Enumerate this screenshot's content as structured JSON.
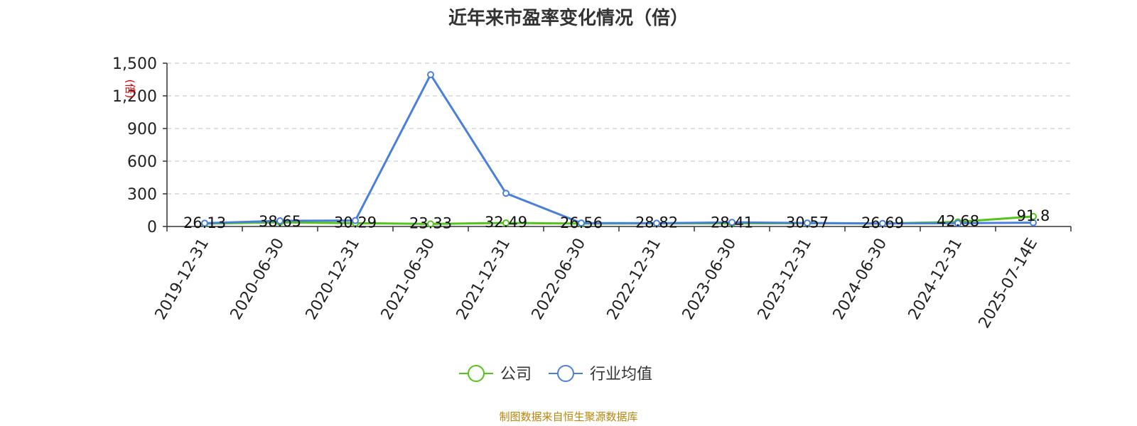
{
  "chart_data": {
    "type": "line",
    "title": "近年来市盈率变化情况（倍）",
    "y_unit": "(倍)",
    "categories": [
      "2019-12-31",
      "2020-06-30",
      "2020-12-31",
      "2021-06-30",
      "2021-12-31",
      "2022-06-30",
      "2022-12-31",
      "2023-06-30",
      "2023-12-31",
      "2024-06-30",
      "2024-12-31",
      "2025-07-14E"
    ],
    "y_ticks": [
      "0",
      "300",
      "600",
      "900",
      "1,200",
      "1,500"
    ],
    "ylim": [
      0,
      1500
    ],
    "grid": true,
    "legend_position": "bottom",
    "series": [
      {
        "name": "公司",
        "color": "#52c41a",
        "values": [
          26.13,
          38.65,
          30.29,
          23.33,
          32.49,
          26.56,
          28.82,
          28.41,
          30.57,
          26.69,
          42.68,
          91.8
        ],
        "labels": [
          "26.13",
          "38.65",
          "30.29",
          "23.33",
          "32.49",
          "26.56",
          "28.82",
          "28.41",
          "30.57",
          "26.69",
          "42.68",
          "91.8"
        ]
      },
      {
        "name": "行业均值",
        "color": "#4a7fdc",
        "values": [
          30,
          52,
          55,
          1395,
          305,
          32,
          30,
          38,
          32,
          28,
          30,
          35
        ]
      }
    ]
  },
  "source_text": "制图数据来自恒生聚源数据库"
}
